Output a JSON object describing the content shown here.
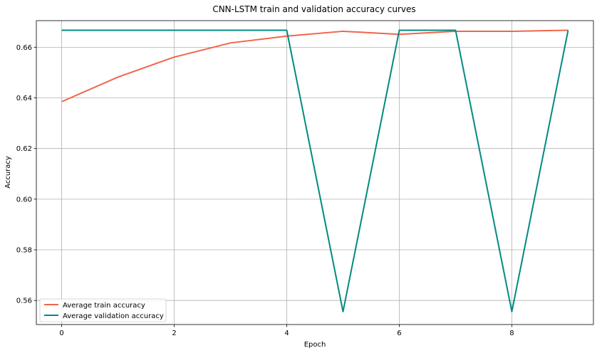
{
  "chart_data": {
    "type": "line",
    "title": "CNN-LSTM train and validation accuracy curves",
    "xlabel": "Epoch",
    "ylabel": "Accuracy",
    "x": [
      0,
      1,
      2,
      3,
      4,
      5,
      6,
      7,
      8,
      9
    ],
    "xlim": [
      -0.45,
      9.45
    ],
    "ylim": [
      0.5505,
      0.6705
    ],
    "xticks": [
      0,
      2,
      4,
      6,
      8
    ],
    "xtick_labels": [
      "0",
      "2",
      "4",
      "6",
      "8"
    ],
    "yticks": [
      0.56,
      0.58,
      0.6,
      0.62,
      0.64,
      0.66
    ],
    "ytick_labels": [
      "0.56",
      "0.58",
      "0.60",
      "0.62",
      "0.64",
      "0.66"
    ],
    "grid": true,
    "legend_position": "lower-left",
    "series": [
      {
        "name": "Average train accuracy",
        "color": "#f0654a",
        "values": [
          0.6385,
          0.6482,
          0.6561,
          0.6617,
          0.6644,
          0.6663,
          0.6651,
          0.6663,
          0.6663,
          0.6667
        ]
      },
      {
        "name": "Average validation accuracy",
        "color": "#008b80",
        "values": [
          0.6667,
          0.6667,
          0.6667,
          0.6667,
          0.6667,
          0.5556,
          0.6667,
          0.6667,
          0.5556,
          0.6667
        ]
      }
    ]
  }
}
